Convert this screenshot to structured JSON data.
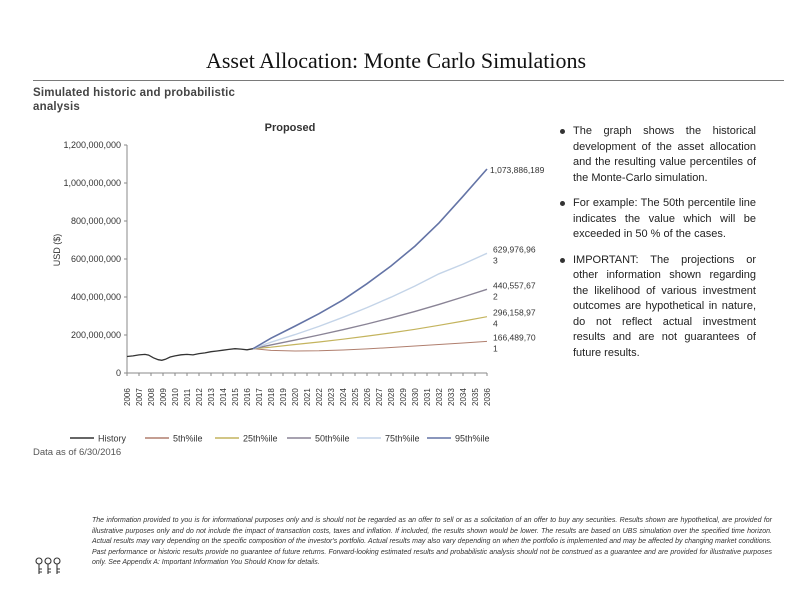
{
  "header": {
    "title": "Asset Allocation: Monte Carlo Simulations",
    "subtitle": "Simulated historic and probabilistic analysis"
  },
  "as_of": "Data as of 6/30/2016",
  "bullets": [
    "The graph shows the historical development of the asset allocation and the resulting value percentiles of the Monte-Carlo simulation.",
    "For example: The 50th percentile line indicates the value which will be exceeded in 50 % of the cases.",
    "IMPORTANT: The projections or other information shown regarding the likelihood of various investment outcomes are hypothetical in nature, do not reflect actual investment results and are not guarantees of future results."
  ],
  "disclaimer": "The information provided to you is for informational purposes only and is should not be regarded as an offer to sell or as a solicitation of an offer to buy any securities. Results shown are hypothetical, are provided for illustrative purposes only and do not include the impact of transaction costs, taxes and inflation. If included, the results shown would be lower. The results are based on UBS simulation over the specified time horizon. Actual results may vary depending on the specific composition of the investor's portfolio. Actual results may also vary depending on when the portfolio is implemented and may be affected by changing market conditions. Past performance or historic results provide no guarantee of future returns. Forward-looking estimated results and probabilistic analysis should not be construed as a guarantee and are provided for illustrative purposes only. See Appendix A: Important Information You Should Know for details.",
  "colors": {
    "history": "#333333",
    "p5": "#b07f6e",
    "p25": "#c4b45e",
    "p50": "#8a8496",
    "p75": "#c4d4e8",
    "p95": "#6474a6"
  },
  "chart_data": {
    "type": "line",
    "title": "Proposed",
    "ylabel": "USD ($)",
    "xlabel": "",
    "ylim": [
      0,
      1200000000
    ],
    "yticks": [
      0,
      200000000,
      400000000,
      600000000,
      800000000,
      1000000000,
      1200000000
    ],
    "ytick_labels": [
      "0",
      "200,000,000",
      "400,000,000",
      "600,000,000",
      "800,000,000",
      "1,000,000,000",
      "1,200,000,000"
    ],
    "xlim": [
      2006,
      2036
    ],
    "x_tick_labels": [
      "2006",
      "2007",
      "2008",
      "2009",
      "2010",
      "2011",
      "2012",
      "2013",
      "2014",
      "2015",
      "2016",
      "2017",
      "2018",
      "2019",
      "2020",
      "2021",
      "2022",
      "2023",
      "2024",
      "2025",
      "2026",
      "2027",
      "2028",
      "2029",
      "2030",
      "2031",
      "2032",
      "2033",
      "2034",
      "2035",
      "2036"
    ],
    "history": {
      "name": "History",
      "x": [
        2006.0,
        2006.5,
        2007.0,
        2007.5,
        2007.8,
        2008.2,
        2008.6,
        2008.9,
        2009.2,
        2009.6,
        2010.0,
        2010.5,
        2011.0,
        2011.5,
        2012.0,
        2012.5,
        2013.0,
        2013.5,
        2014.0,
        2014.5,
        2015.0,
        2015.5,
        2016.0,
        2016.5
      ],
      "y": [
        87000000,
        90000000,
        95000000,
        98000000,
        94000000,
        80000000,
        70000000,
        67000000,
        72000000,
        84000000,
        90000000,
        96000000,
        98000000,
        95000000,
        102000000,
        106000000,
        112000000,
        116000000,
        120000000,
        124000000,
        128000000,
        126000000,
        122000000,
        128000000
      ]
    },
    "x": [
      2016.5,
      2018,
      2020,
      2022,
      2024,
      2026,
      2028,
      2030,
      2032,
      2034,
      2036
    ],
    "series": [
      {
        "name": "5th%ile",
        "values": [
          128000000,
          119000000,
          116000000,
          117000000,
          121000000,
          127000000,
          134000000,
          142000000,
          150000000,
          158000000,
          166489701
        ]
      },
      {
        "name": "25th%ile",
        "values": [
          128000000,
          136000000,
          150000000,
          163000000,
          178000000,
          194000000,
          211000000,
          230000000,
          251000000,
          273000000,
          296158974
        ]
      },
      {
        "name": "50th%ile",
        "values": [
          128000000,
          148000000,
          173000000,
          200000000,
          228000000,
          258000000,
          290000000,
          324000000,
          361000000,
          400000000,
          440557672
        ]
      },
      {
        "name": "75th%ile",
        "values": [
          128000000,
          162000000,
          202000000,
          245000000,
          293000000,
          344000000,
          399000000,
          458000000,
          522000000,
          573000000,
          629976963
        ]
      },
      {
        "name": "95th%ile",
        "values": [
          128000000,
          183000000,
          247000000,
          312000000,
          385000000,
          470000000,
          563000000,
          668000000,
          790000000,
          930000000,
          1073886189
        ]
      }
    ],
    "end_labels": [
      {
        "series": "95th%ile",
        "text": "1,073,886,189"
      },
      {
        "series": "75th%ile",
        "text": "629,976,963"
      },
      {
        "series": "50th%ile",
        "text": "440,557,672"
      },
      {
        "series": "25th%ile",
        "text": "296,158,974"
      },
      {
        "series": "5th%ile",
        "text": "166,489,701"
      }
    ],
    "legend_position": "bottom",
    "grid": false
  }
}
